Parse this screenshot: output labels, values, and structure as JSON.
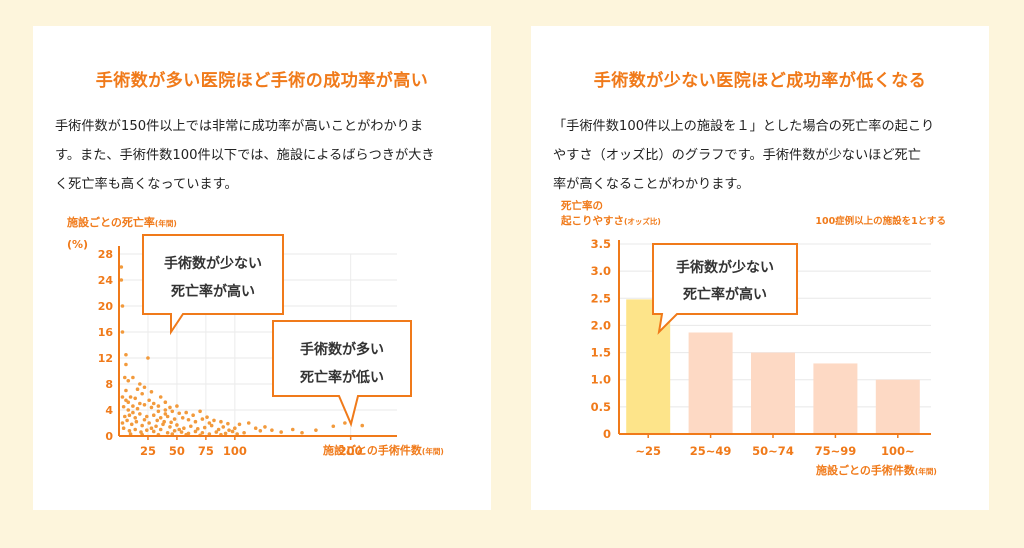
{
  "left_panel": {
    "title": "手術数が多い医院ほど手術の成功率が高い",
    "description_lines": [
      "手術件数が150件以上では非常に成功率が高いことがわかりま",
      "す。また、手術件数100件以下では、施設によるばらつきが大き",
      "く死亡率も高くなっています。"
    ],
    "callout_1": {
      "line1": "手術数が少ない",
      "line2": "死亡率が高い"
    },
    "callout_2": {
      "line1": "手術数が多い",
      "line2": "死亡率が低い"
    }
  },
  "right_panel": {
    "title": "手術数が少ない医院ほど成功率が低くなる",
    "description_lines": [
      "「手術件数100件以上の施設を１」とした場合の死亡率の起こり",
      "やすさ（オッズ比）のグラフです。手術件数が少ないほど死亡",
      "率が高くなることがわかります。"
    ],
    "callout": {
      "line1": "手術数が少ない",
      "line2": "死亡率が高い"
    }
  },
  "chart_data": [
    {
      "type": "scatter",
      "title": "手術数が多い医院ほど手術の成功率が高い",
      "ylabel": "施設ごとの死亡率",
      "ylabel_suffix": "(年間)",
      "yunit": "(%)",
      "xlabel": "施設ごとの手術件数",
      "xlabel_suffix": "(年間)",
      "ylim": [
        0,
        28
      ],
      "yticks": [
        0,
        4,
        8,
        12,
        16,
        20,
        24,
        28
      ],
      "xticks": [
        25,
        50,
        75,
        100,
        200
      ],
      "xlim": [
        0,
        240
      ],
      "grid": true,
      "points": [
        [
          2,
          26
        ],
        [
          2,
          24
        ],
        [
          3,
          20
        ],
        [
          3,
          16
        ],
        [
          6,
          12.5
        ],
        [
          6,
          11
        ],
        [
          25,
          12
        ],
        [
          5,
          9
        ],
        [
          8,
          8.5
        ],
        [
          12,
          9
        ],
        [
          18,
          8
        ],
        [
          22,
          7.5
        ],
        [
          3,
          6
        ],
        [
          6,
          5.5
        ],
        [
          10,
          6
        ],
        [
          14,
          5.8
        ],
        [
          20,
          6.5
        ],
        [
          26,
          5.5
        ],
        [
          30,
          5
        ],
        [
          4,
          4.5
        ],
        [
          8,
          4
        ],
        [
          12,
          4.6
        ],
        [
          16,
          4.2
        ],
        [
          22,
          4.8
        ],
        [
          28,
          4.4
        ],
        [
          34,
          4.6
        ],
        [
          40,
          4
        ],
        [
          46,
          3.8
        ],
        [
          52,
          3.5
        ],
        [
          5,
          3
        ],
        [
          9,
          3.2
        ],
        [
          14,
          2.8
        ],
        [
          18,
          3.4
        ],
        [
          24,
          3
        ],
        [
          30,
          3.2
        ],
        [
          36,
          2.8
        ],
        [
          42,
          3
        ],
        [
          48,
          2.6
        ],
        [
          55,
          2.8
        ],
        [
          60,
          2.5
        ],
        [
          66,
          2.2
        ],
        [
          72,
          2.6
        ],
        [
          78,
          2
        ],
        [
          3,
          2
        ],
        [
          7,
          2.4
        ],
        [
          11,
          1.8
        ],
        [
          15,
          2.2
        ],
        [
          20,
          1.6
        ],
        [
          26,
          2
        ],
        [
          32,
          1.5
        ],
        [
          38,
          1.8
        ],
        [
          44,
          1.4
        ],
        [
          50,
          1.7
        ],
        [
          56,
          1.2
        ],
        [
          62,
          1.5
        ],
        [
          68,
          1.1
        ],
        [
          74,
          1.3
        ],
        [
          80,
          1.6
        ],
        [
          86,
          1
        ],
        [
          90,
          1.4
        ],
        [
          95,
          0.9
        ],
        [
          100,
          1.2
        ],
        [
          4,
          1.2
        ],
        [
          9,
          0.8
        ],
        [
          14,
          1
        ],
        [
          19,
          0.6
        ],
        [
          24,
          0.9
        ],
        [
          30,
          0.7
        ],
        [
          36,
          1
        ],
        [
          42,
          0.5
        ],
        [
          48,
          0.8
        ],
        [
          54,
          0.6
        ],
        [
          60,
          0.4
        ],
        [
          66,
          0.7
        ],
        [
          72,
          0.5
        ],
        [
          78,
          0.3
        ],
        [
          84,
          0.6
        ],
        [
          92,
          0.4
        ],
        [
          98,
          0.7
        ],
        [
          104,
          1.8
        ],
        [
          108,
          0.5
        ],
        [
          112,
          2
        ],
        [
          118,
          1.2
        ],
        [
          122,
          0.8
        ],
        [
          126,
          1.4
        ],
        [
          132,
          0.9
        ],
        [
          140,
          0.6
        ],
        [
          150,
          1
        ],
        [
          158,
          0.5
        ],
        [
          170,
          0.9
        ],
        [
          185,
          1.5
        ],
        [
          195,
          2
        ],
        [
          210,
          1.6
        ],
        [
          10,
          0.3
        ],
        [
          20,
          0.2
        ],
        [
          34,
          0.2
        ],
        [
          46,
          0.3
        ],
        [
          58,
          0.2
        ],
        [
          70,
          0.1
        ],
        [
          88,
          0.2
        ],
        [
          102,
          0.3
        ],
        [
          6,
          7
        ],
        [
          16,
          7.2
        ],
        [
          28,
          6.8
        ],
        [
          36,
          6
        ],
        [
          40,
          5.2
        ],
        [
          44,
          4.4
        ],
        [
          50,
          4.6
        ],
        [
          58,
          3.6
        ],
        [
          64,
          3.2
        ],
        [
          70,
          3.8
        ],
        [
          76,
          2.9
        ],
        [
          82,
          2.4
        ],
        [
          88,
          2.2
        ],
        [
          94,
          1.9
        ],
        [
          40,
          3.4
        ],
        [
          34,
          3.8
        ],
        [
          12,
          3.6
        ],
        [
          18,
          5
        ],
        [
          8,
          5.2
        ],
        [
          22,
          2.5
        ],
        [
          28,
          1.2
        ],
        [
          33,
          2.4
        ],
        [
          39,
          2.2
        ],
        [
          45,
          2.1
        ],
        [
          52,
          1
        ]
      ]
    },
    {
      "type": "bar",
      "title": "手術数が少ない医院ほど成功率が低くなる",
      "ylabel_line1": "死亡率の",
      "ylabel_line2": "起こりやすさ",
      "ylabel_suffix": "(オッズ比)",
      "note": "100症例以上の施設を1とする",
      "xlabel": "施設ごとの手術件数",
      "xlabel_suffix": "(年間)",
      "categories": [
        "~25",
        "25~49",
        "50~74",
        "75~99",
        "100~"
      ],
      "values": [
        2.48,
        1.87,
        1.5,
        1.3,
        1.0
      ],
      "ylim": [
        0,
        3.5
      ],
      "yticks": [
        "0",
        "0.5",
        "1.0",
        "1.5",
        "2.0",
        "2.5",
        "3.0",
        "3.5"
      ],
      "grid": true,
      "colors": {
        "highlight": "#fde48a",
        "bar": "#fdd9c4",
        "axis": "#f07a1a"
      }
    }
  ]
}
